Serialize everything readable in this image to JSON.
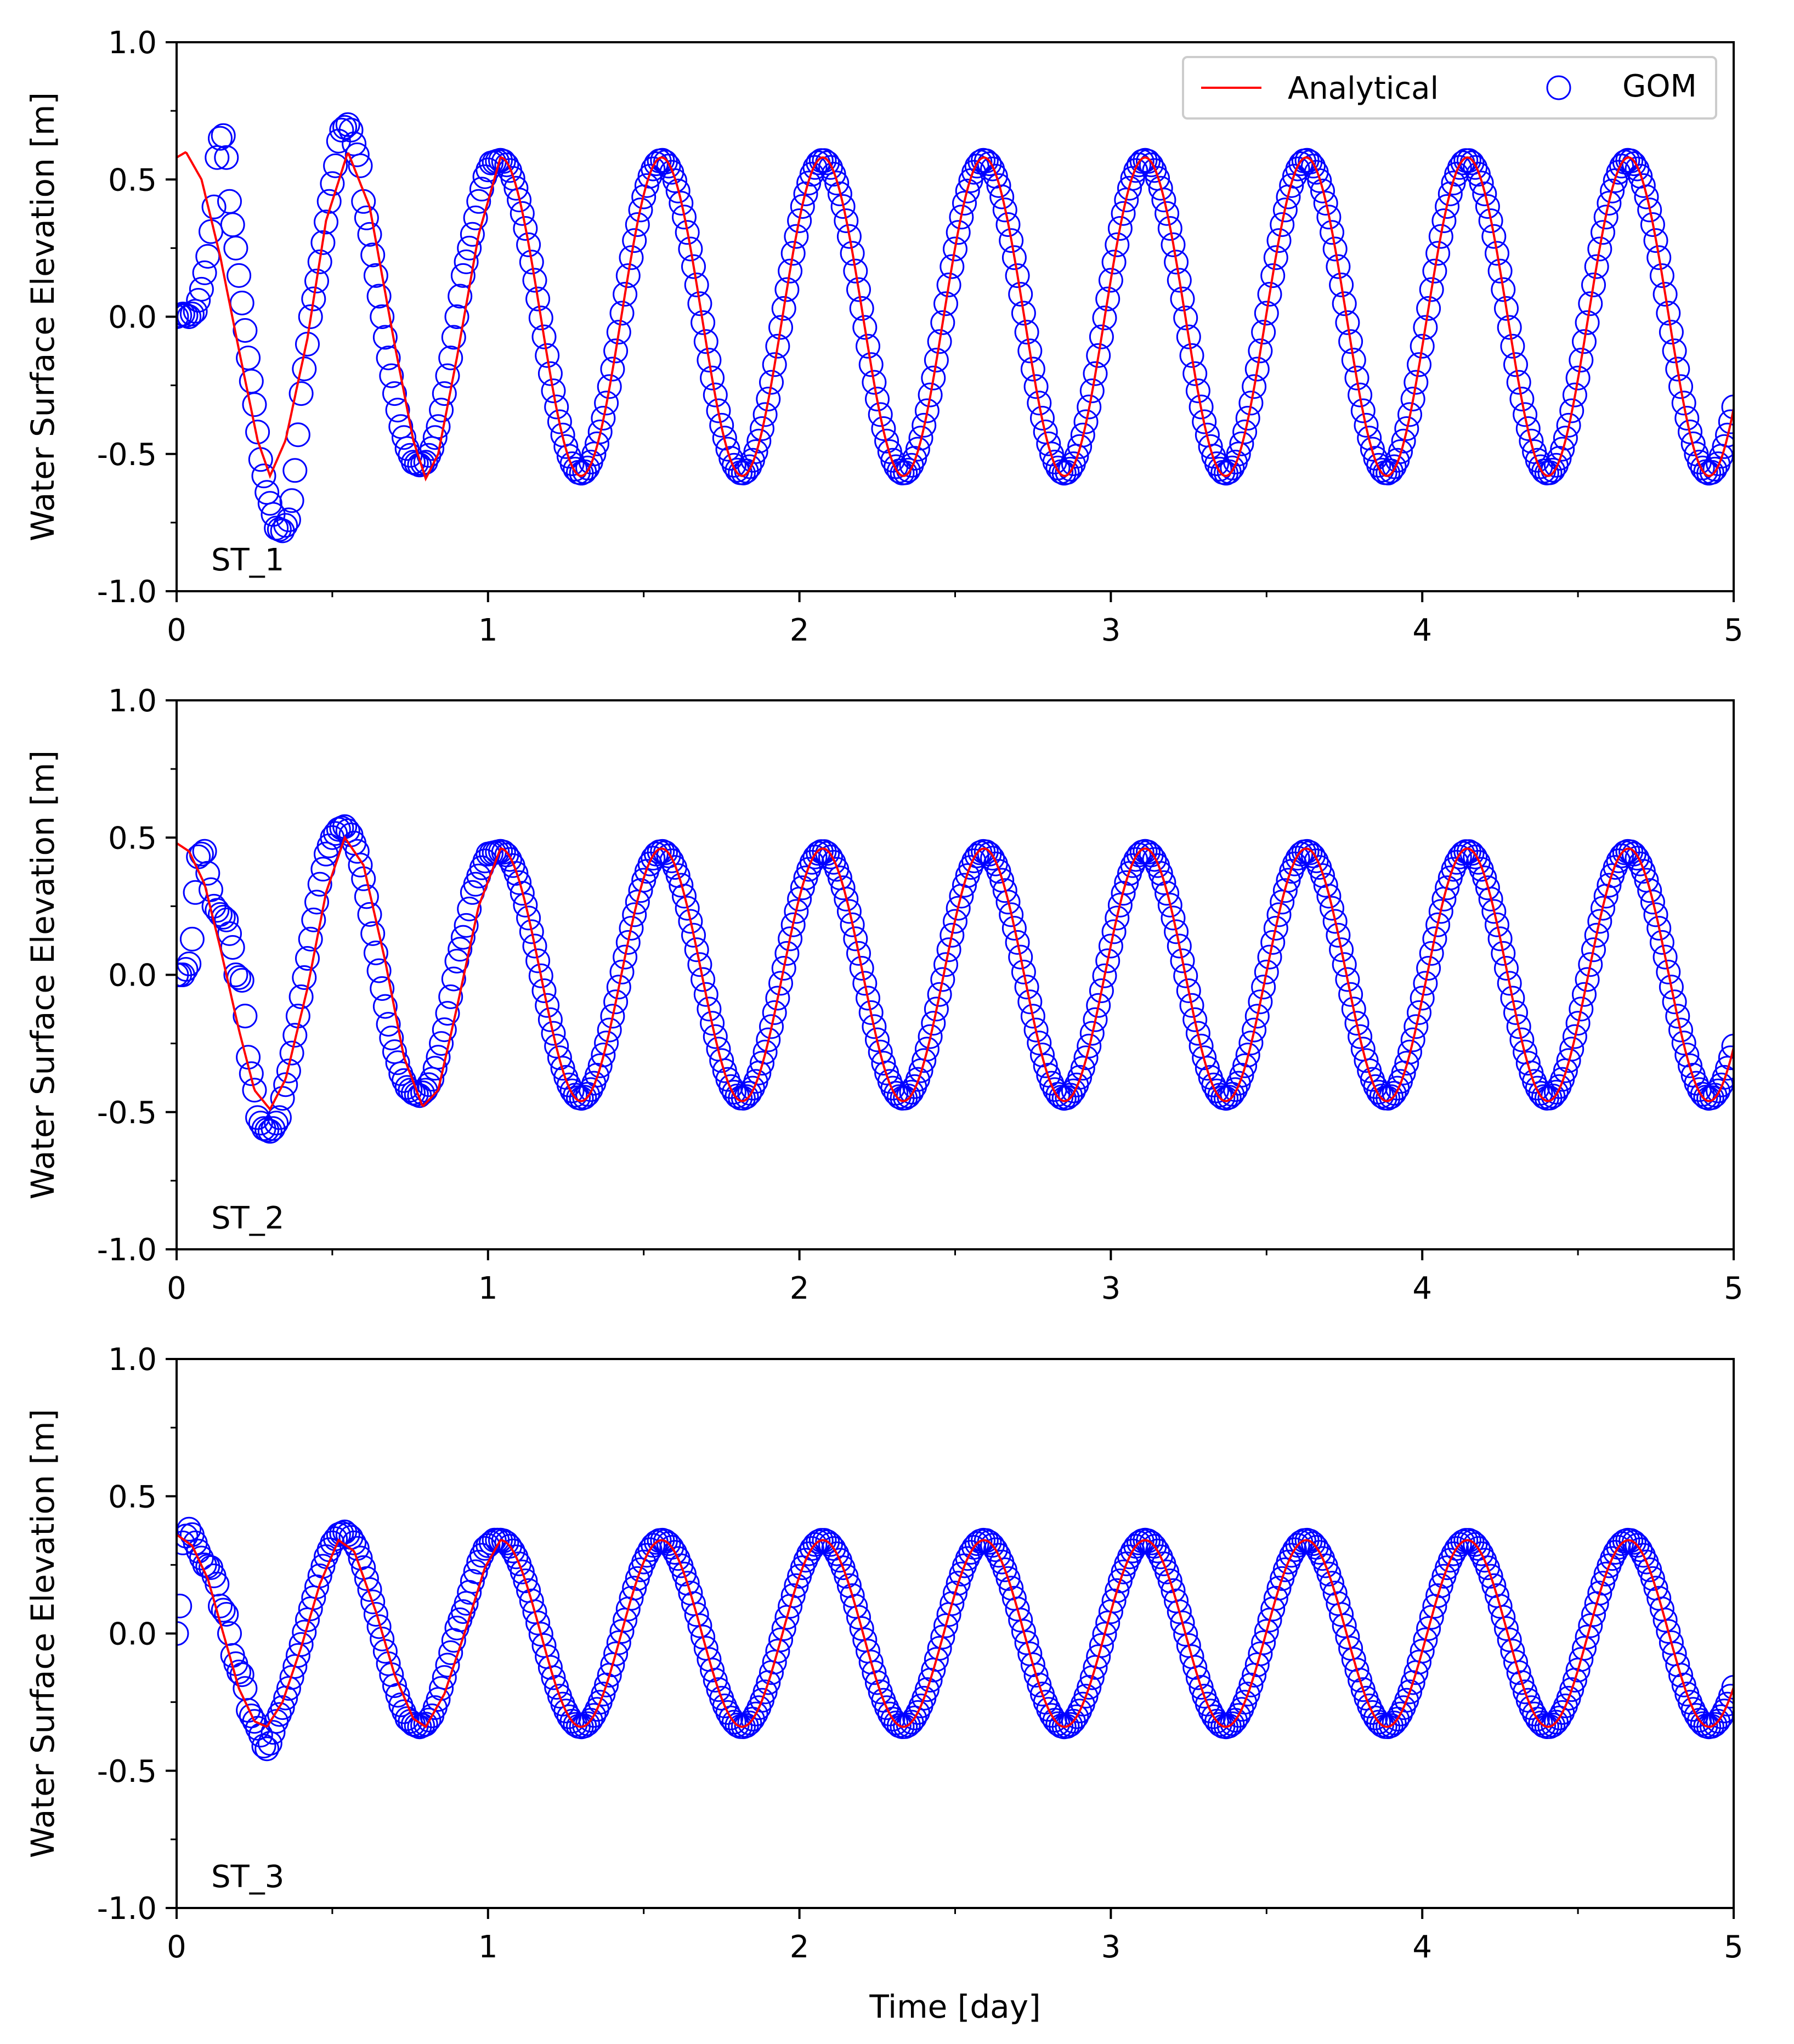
{
  "colors": {
    "analytical": "#ff0000",
    "gom": "#0000ff",
    "frame": "#000000",
    "background": "#ffffff"
  },
  "legend": {
    "placement": "top-right",
    "entries": [
      {
        "label": "Analytical",
        "marker": "line",
        "color": "#ff0000"
      },
      {
        "label": "GOM",
        "marker": "open-circle",
        "color": "#0000ff"
      }
    ]
  },
  "chart_data": [
    {
      "type": "line",
      "station": "ST_1",
      "ylabel": "Water Surface Elevation [m]",
      "xlabel": "",
      "xlim": [
        0,
        5
      ],
      "ylim": [
        -1.0,
        1.0
      ],
      "xticks": [
        "0",
        "1",
        "2",
        "3",
        "4",
        "5"
      ],
      "yticks": [
        "-1.0",
        "-0.5",
        "0.0",
        "0.5",
        "1.0"
      ],
      "tidal_period_days": 0.5175,
      "series": [
        {
          "name": "Analytical",
          "style": "line",
          "amplitude": 0.58,
          "spinup_points": [
            [
              0,
              0.58
            ],
            [
              0.03,
              0.6
            ],
            [
              0.08,
              0.5
            ],
            [
              0.14,
              0.22
            ],
            [
              0.2,
              -0.12
            ],
            [
              0.26,
              -0.45
            ],
            [
              0.3,
              -0.58
            ],
            [
              0.35,
              -0.45
            ],
            [
              0.42,
              -0.08
            ],
            [
              0.48,
              0.35
            ],
            [
              0.55,
              0.6
            ],
            [
              0.62,
              0.4
            ],
            [
              0.7,
              -0.1
            ],
            [
              0.76,
              -0.45
            ],
            [
              0.8,
              -0.59
            ],
            [
              0.84,
              -0.5
            ],
            [
              0.9,
              -0.15
            ],
            [
              0.97,
              0.3
            ],
            [
              1.04,
              0.58
            ]
          ]
        },
        {
          "name": "GOM",
          "style": "open-circle",
          "amplitude": 0.57,
          "spinup_points": [
            [
              0,
              0.0
            ],
            [
              0.02,
              0.01
            ],
            [
              0.04,
              0.0
            ],
            [
              0.06,
              0.02
            ],
            [
              0.08,
              0.1
            ],
            [
              0.1,
              0.22
            ],
            [
              0.12,
              0.4
            ],
            [
              0.13,
              0.58
            ],
            [
              0.14,
              0.65
            ],
            [
              0.15,
              0.66
            ],
            [
              0.16,
              0.58
            ],
            [
              0.17,
              0.42
            ],
            [
              0.19,
              0.25
            ],
            [
              0.21,
              0.05
            ],
            [
              0.23,
              -0.15
            ],
            [
              0.25,
              -0.32
            ],
            [
              0.27,
              -0.52
            ],
            [
              0.29,
              -0.64
            ],
            [
              0.31,
              -0.72
            ],
            [
              0.32,
              -0.77
            ],
            [
              0.34,
              -0.78
            ],
            [
              0.36,
              -0.74
            ],
            [
              0.37,
              -0.67
            ],
            [
              0.38,
              -0.56
            ],
            [
              0.39,
              -0.43
            ],
            [
              0.4,
              -0.28
            ],
            [
              0.42,
              -0.1
            ],
            [
              0.43,
              0.0
            ],
            [
              0.45,
              0.13
            ],
            [
              0.47,
              0.27
            ],
            [
              0.49,
              0.42
            ],
            [
              0.51,
              0.55
            ],
            [
              0.52,
              0.64
            ],
            [
              0.53,
              0.68
            ],
            [
              0.54,
              0.69
            ],
            [
              0.55,
              0.7
            ],
            [
              0.56,
              0.68
            ],
            [
              0.57,
              0.63
            ],
            [
              0.59,
              0.55
            ],
            [
              0.6,
              0.42
            ],
            [
              0.62,
              0.3
            ],
            [
              0.64,
              0.15
            ],
            [
              0.66,
              0.0
            ],
            [
              0.68,
              -0.15
            ],
            [
              0.7,
              -0.28
            ],
            [
              0.72,
              -0.4
            ],
            [
              0.74,
              -0.48
            ],
            [
              0.76,
              -0.53
            ],
            [
              0.78,
              -0.54
            ],
            [
              0.8,
              -0.53
            ],
            [
              0.82,
              -0.48
            ],
            [
              0.84,
              -0.4
            ],
            [
              0.86,
              -0.28
            ],
            [
              0.88,
              -0.15
            ],
            [
              0.9,
              0.0
            ],
            [
              0.92,
              0.15
            ],
            [
              0.95,
              0.3
            ],
            [
              0.97,
              0.42
            ],
            [
              0.99,
              0.51
            ],
            [
              1.01,
              0.56
            ],
            [
              1.04,
              0.57
            ]
          ]
        }
      ]
    },
    {
      "type": "line",
      "station": "ST_2",
      "ylabel": "Water Surface Elevation [m]",
      "xlabel": "",
      "xlim": [
        0,
        5
      ],
      "ylim": [
        -1.0,
        1.0
      ],
      "xticks": [
        "0",
        "1",
        "2",
        "3",
        "4",
        "5"
      ],
      "yticks": [
        "-1.0",
        "-0.5",
        "0.0",
        "0.5",
        "1.0"
      ],
      "tidal_period_days": 0.5175,
      "series": [
        {
          "name": "Analytical",
          "style": "line",
          "amplitude": 0.46,
          "spinup_points": [
            [
              0,
              0.48
            ],
            [
              0.04,
              0.45
            ],
            [
              0.09,
              0.33
            ],
            [
              0.14,
              0.1
            ],
            [
              0.2,
              -0.2
            ],
            [
              0.25,
              -0.42
            ],
            [
              0.3,
              -0.49
            ],
            [
              0.35,
              -0.38
            ],
            [
              0.42,
              -0.05
            ],
            [
              0.48,
              0.3
            ],
            [
              0.54,
              0.5
            ],
            [
              0.6,
              0.4
            ],
            [
              0.67,
              0.05
            ],
            [
              0.73,
              -0.3
            ],
            [
              0.79,
              -0.48
            ],
            [
              0.84,
              -0.42
            ],
            [
              0.9,
              -0.12
            ],
            [
              0.97,
              0.25
            ],
            [
              1.04,
              0.46
            ]
          ]
        },
        {
          "name": "GOM",
          "style": "open-circle",
          "amplitude": 0.45,
          "spinup_points": [
            [
              0,
              0.0
            ],
            [
              0.02,
              0.0
            ],
            [
              0.04,
              0.04
            ],
            [
              0.05,
              0.13
            ],
            [
              0.06,
              0.3
            ],
            [
              0.07,
              0.43
            ],
            [
              0.09,
              0.45
            ],
            [
              0.1,
              0.37
            ],
            [
              0.12,
              0.25
            ],
            [
              0.14,
              0.22
            ],
            [
              0.16,
              0.2
            ],
            [
              0.18,
              0.1
            ],
            [
              0.19,
              0.0
            ],
            [
              0.21,
              -0.02
            ],
            [
              0.22,
              -0.15
            ],
            [
              0.23,
              -0.3
            ],
            [
              0.25,
              -0.42
            ],
            [
              0.26,
              -0.52
            ],
            [
              0.28,
              -0.56
            ],
            [
              0.3,
              -0.57
            ],
            [
              0.31,
              -0.56
            ],
            [
              0.33,
              -0.52
            ],
            [
              0.34,
              -0.45
            ],
            [
              0.36,
              -0.35
            ],
            [
              0.38,
              -0.22
            ],
            [
              0.4,
              -0.08
            ],
            [
              0.42,
              0.06
            ],
            [
              0.44,
              0.2
            ],
            [
              0.46,
              0.33
            ],
            [
              0.48,
              0.44
            ],
            [
              0.5,
              0.5
            ],
            [
              0.52,
              0.53
            ],
            [
              0.54,
              0.54
            ],
            [
              0.56,
              0.51
            ],
            [
              0.58,
              0.45
            ],
            [
              0.6,
              0.35
            ],
            [
              0.62,
              0.22
            ],
            [
              0.64,
              0.08
            ],
            [
              0.66,
              -0.05
            ],
            [
              0.68,
              -0.18
            ],
            [
              0.7,
              -0.28
            ],
            [
              0.72,
              -0.36
            ],
            [
              0.74,
              -0.41
            ],
            [
              0.76,
              -0.43
            ],
            [
              0.78,
              -0.44
            ],
            [
              0.8,
              -0.42
            ],
            [
              0.82,
              -0.38
            ],
            [
              0.84,
              -0.3
            ],
            [
              0.86,
              -0.2
            ],
            [
              0.88,
              -0.08
            ],
            [
              0.9,
              0.05
            ],
            [
              0.93,
              0.18
            ],
            [
              0.95,
              0.3
            ],
            [
              0.98,
              0.39
            ],
            [
              1.0,
              0.44
            ],
            [
              1.04,
              0.45
            ]
          ]
        }
      ]
    },
    {
      "type": "line",
      "station": "ST_3",
      "ylabel": "Water Surface Elevation [m]",
      "xlabel": "Time [day]",
      "xlim": [
        0,
        5
      ],
      "ylim": [
        -1.0,
        1.0
      ],
      "xticks": [
        "0",
        "1",
        "2",
        "3",
        "4",
        "5"
      ],
      "yticks": [
        "-1.0",
        "-0.5",
        "0.0",
        "0.5",
        "1.0"
      ],
      "tidal_period_days": 0.5175,
      "series": [
        {
          "name": "Analytical",
          "style": "line",
          "amplitude": 0.34,
          "spinup_points": [
            [
              0,
              0.36
            ],
            [
              0.05,
              0.32
            ],
            [
              0.1,
              0.2
            ],
            [
              0.15,
              0.0
            ],
            [
              0.2,
              -0.2
            ],
            [
              0.25,
              -0.32
            ],
            [
              0.29,
              -0.34
            ],
            [
              0.34,
              -0.25
            ],
            [
              0.4,
              -0.05
            ],
            [
              0.46,
              0.18
            ],
            [
              0.52,
              0.34
            ],
            [
              0.57,
              0.3
            ],
            [
              0.64,
              0.08
            ],
            [
              0.7,
              -0.15
            ],
            [
              0.76,
              -0.31
            ],
            [
              0.8,
              -0.34
            ],
            [
              0.86,
              -0.22
            ],
            [
              0.93,
              0.02
            ],
            [
              0.99,
              0.24
            ],
            [
              1.04,
              0.34
            ]
          ]
        },
        {
          "name": "GOM",
          "style": "open-circle",
          "amplitude": 0.34,
          "spinup_points": [
            [
              0,
              0.0
            ],
            [
              0.01,
              0.1
            ],
            [
              0.02,
              0.33
            ],
            [
              0.04,
              0.38
            ],
            [
              0.05,
              0.36
            ],
            [
              0.07,
              0.3
            ],
            [
              0.09,
              0.25
            ],
            [
              0.11,
              0.24
            ],
            [
              0.13,
              0.18
            ],
            [
              0.14,
              0.1
            ],
            [
              0.16,
              0.07
            ],
            [
              0.17,
              0.0
            ],
            [
              0.18,
              -0.08
            ],
            [
              0.2,
              -0.14
            ],
            [
              0.21,
              -0.15
            ],
            [
              0.22,
              -0.2
            ],
            [
              0.23,
              -0.28
            ],
            [
              0.25,
              -0.32
            ],
            [
              0.27,
              -0.37
            ],
            [
              0.28,
              -0.41
            ],
            [
              0.29,
              -0.42
            ],
            [
              0.3,
              -0.4
            ],
            [
              0.31,
              -0.36
            ],
            [
              0.32,
              -0.32
            ],
            [
              0.34,
              -0.27
            ],
            [
              0.36,
              -0.2
            ],
            [
              0.38,
              -0.12
            ],
            [
              0.4,
              -0.04
            ],
            [
              0.42,
              0.05
            ],
            [
              0.44,
              0.13
            ],
            [
              0.46,
              0.21
            ],
            [
              0.48,
              0.28
            ],
            [
              0.5,
              0.33
            ],
            [
              0.52,
              0.36
            ],
            [
              0.54,
              0.37
            ],
            [
              0.56,
              0.35
            ],
            [
              0.58,
              0.31
            ],
            [
              0.6,
              0.24
            ],
            [
              0.62,
              0.16
            ],
            [
              0.64,
              0.07
            ],
            [
              0.66,
              -0.02
            ],
            [
              0.68,
              -0.11
            ],
            [
              0.7,
              -0.19
            ],
            [
              0.72,
              -0.26
            ],
            [
              0.74,
              -0.31
            ],
            [
              0.76,
              -0.33
            ],
            [
              0.78,
              -0.34
            ],
            [
              0.8,
              -0.33
            ],
            [
              0.82,
              -0.3
            ],
            [
              0.84,
              -0.24
            ],
            [
              0.86,
              -0.16
            ],
            [
              0.88,
              -0.07
            ],
            [
              0.9,
              0.02
            ],
            [
              0.93,
              0.11
            ],
            [
              0.95,
              0.19
            ],
            [
              0.97,
              0.26
            ],
            [
              0.99,
              0.31
            ],
            [
              1.02,
              0.34
            ],
            [
              1.04,
              0.34
            ]
          ]
        }
      ]
    }
  ]
}
